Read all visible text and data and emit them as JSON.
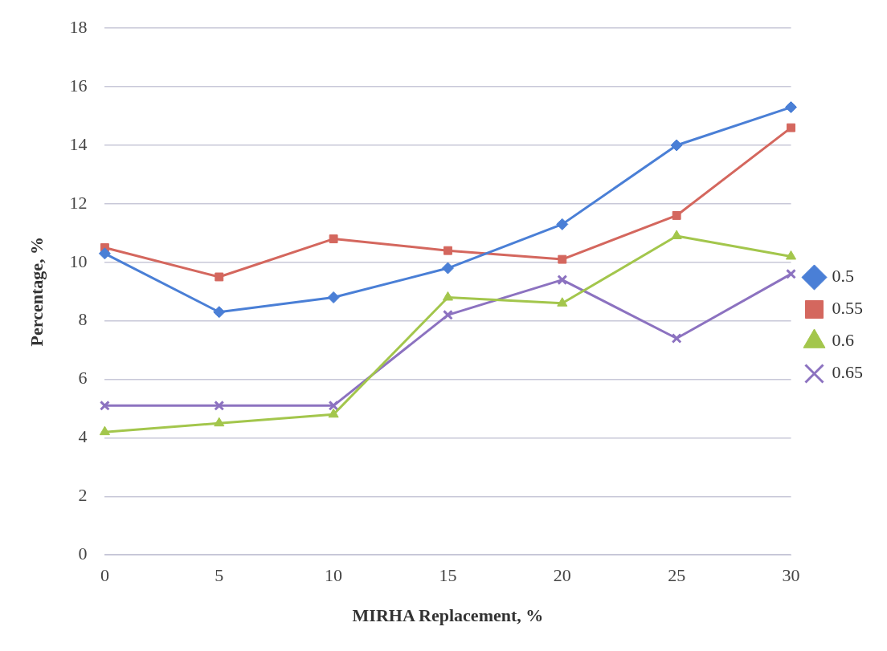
{
  "chart_data": {
    "type": "line",
    "xlabel": "MIRHA Replacement, %",
    "ylabel": "Percentage, %",
    "categories": [
      "0",
      "5",
      "10",
      "15",
      "20",
      "25",
      "30"
    ],
    "ylim": [
      0,
      18
    ],
    "yticks": [
      0,
      2,
      4,
      6,
      8,
      10,
      12,
      14,
      16,
      18
    ],
    "grid": "y",
    "legend": "right",
    "line_style": "solid",
    "series": [
      {
        "name": "0.5",
        "color": "#4a7fd6",
        "marker": "diamond",
        "values": [
          10.3,
          8.3,
          8.8,
          9.8,
          11.3,
          14.0,
          15.3
        ]
      },
      {
        "name": "0.55",
        "color": "#d4675e",
        "marker": "square",
        "values": [
          10.5,
          9.5,
          10.8,
          10.4,
          10.1,
          11.6,
          14.6
        ]
      },
      {
        "name": "0.6",
        "color": "#a3c64c",
        "marker": "triangle",
        "values": [
          4.2,
          4.5,
          4.8,
          8.8,
          8.6,
          10.9,
          10.2
        ]
      },
      {
        "name": "0.65",
        "color": "#8c72c0",
        "marker": "cross",
        "values": [
          5.1,
          5.1,
          5.1,
          8.2,
          9.4,
          7.4,
          9.6
        ]
      }
    ]
  }
}
